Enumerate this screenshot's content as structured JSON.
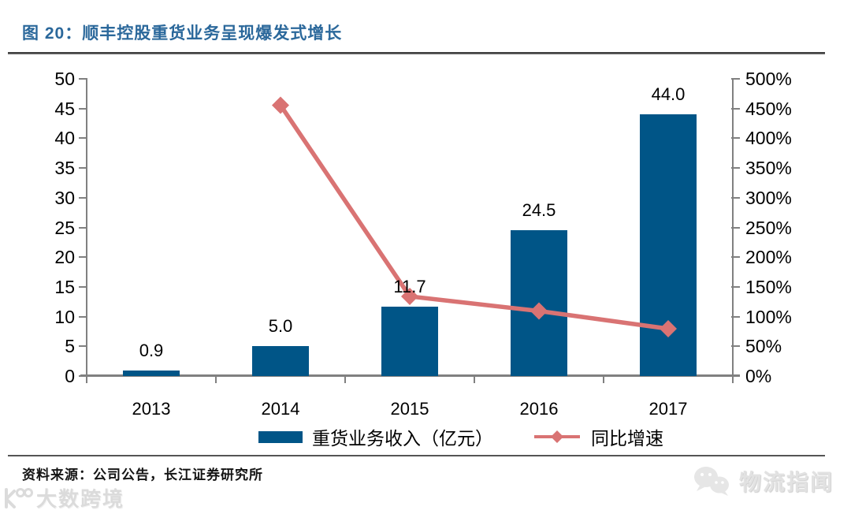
{
  "header": {
    "title": "图 20：顺丰控股重货业务呈现爆发式增长",
    "title_color": "#2B689B"
  },
  "chart_data": {
    "type": "bar+line combo",
    "categories": [
      "2013",
      "2014",
      "2015",
      "2016",
      "2017"
    ],
    "series": [
      {
        "name": "重货业务收入（亿元）",
        "type": "bar",
        "axis": "left",
        "values": [
          0.9,
          5.0,
          11.7,
          24.5,
          44.0
        ],
        "labels": [
          "0.9",
          "5.0",
          "11.7",
          "24.5",
          "44.0"
        ],
        "color": "#005587"
      },
      {
        "name": "同比增速",
        "type": "line",
        "axis": "right",
        "values_pct": [
          null,
          455.6,
          134.0,
          109.4,
          79.6
        ],
        "color": "#D97373",
        "marker": "diamond"
      }
    ],
    "left_axis": {
      "min": 0,
      "max": 50,
      "step": 5,
      "ticks": [
        "0",
        "5",
        "10",
        "15",
        "20",
        "25",
        "30",
        "35",
        "40",
        "45",
        "50"
      ]
    },
    "right_axis": {
      "min": 0,
      "max": 500,
      "step": 50,
      "ticks": [
        "0%",
        "50%",
        "100%",
        "150%",
        "200%",
        "250%",
        "300%",
        "350%",
        "400%",
        "450%",
        "500%"
      ]
    },
    "grid": false,
    "legend_position": "bottom"
  },
  "legend": {
    "bar_label": "重货业务收入（亿元）",
    "line_label": "同比增速"
  },
  "footer": {
    "source": "资料来源：公司公告，长江证券研究所",
    "watermark_left": "大数跨境",
    "watermark_right": "物流指闻"
  },
  "colors": {
    "bar": "#005587",
    "line": "#D97373",
    "axis": "#808080",
    "title": "#2B689B"
  }
}
